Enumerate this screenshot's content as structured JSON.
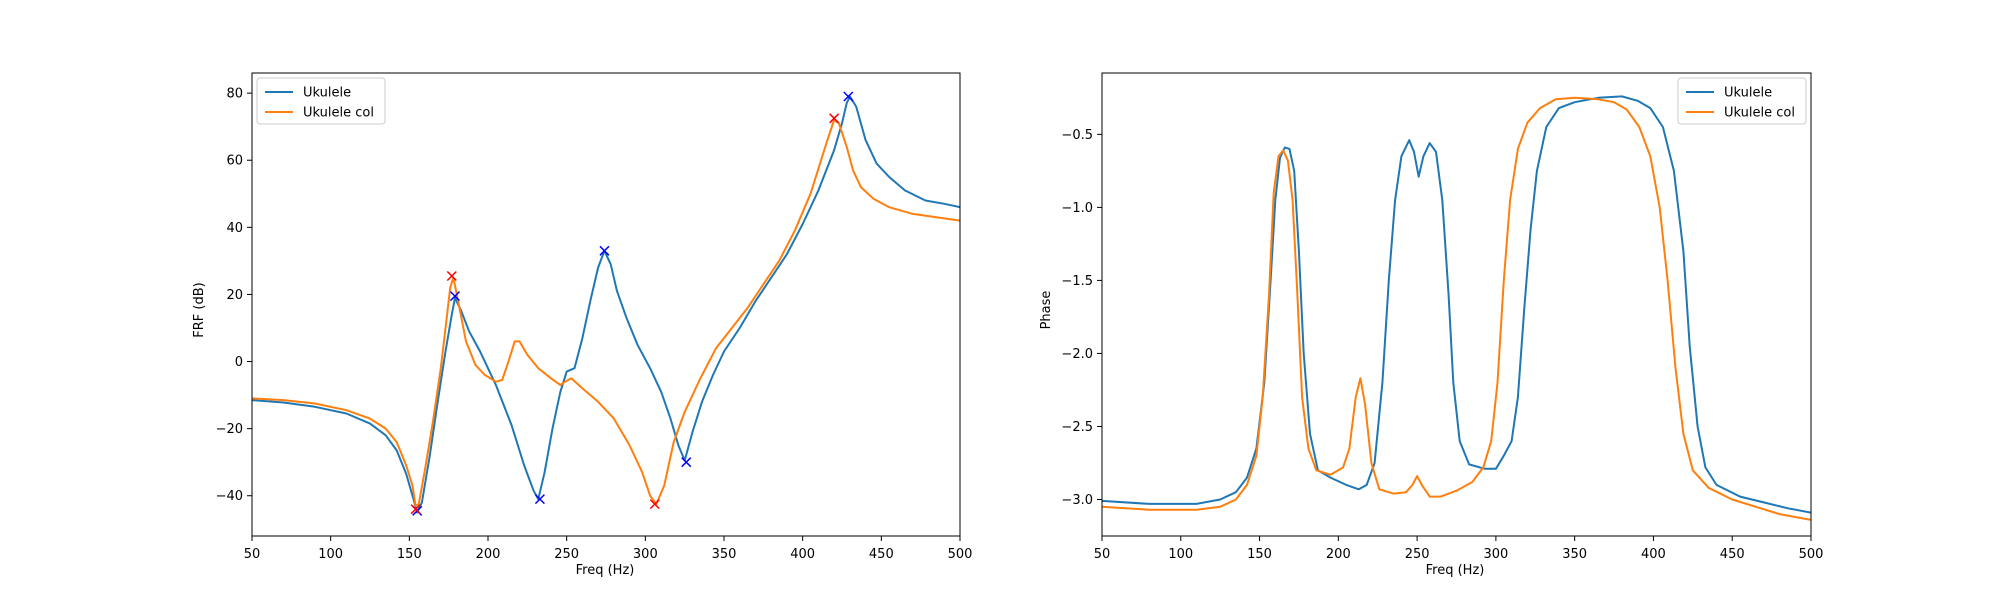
{
  "chart_data": [
    {
      "type": "line",
      "title": "",
      "xlabel": "Freq (Hz)",
      "ylabel": "FRF (dB)",
      "xlim": [
        50,
        500
      ],
      "ylim": [
        -52,
        86
      ],
      "xticks": [
        50,
        100,
        150,
        200,
        250,
        300,
        350,
        400,
        450,
        500
      ],
      "yticks": [
        -40,
        -20,
        0,
        20,
        40,
        60,
        80
      ],
      "grid": false,
      "legend_position": "top-left",
      "series": [
        {
          "name": "Ukulele",
          "color": "#1f77b4",
          "points": [
            [
              50,
              -11.5
            ],
            [
              70,
              -12.2
            ],
            [
              90,
              -13.5
            ],
            [
              110,
              -15.5
            ],
            [
              125,
              -18.5
            ],
            [
              135,
              -22
            ],
            [
              142,
              -26.5
            ],
            [
              148,
              -33.5
            ],
            [
              152,
              -40
            ],
            [
              155,
              -45
            ],
            [
              158,
              -42
            ],
            [
              163,
              -28
            ],
            [
              168,
              -12
            ],
            [
              173,
              3
            ],
            [
              177,
              14
            ],
            [
              179,
              19
            ],
            [
              183,
              15
            ],
            [
              188,
              9
            ],
            [
              195,
              3
            ],
            [
              205,
              -7
            ],
            [
              215,
              -19
            ],
            [
              223,
              -31
            ],
            [
              229,
              -38.5
            ],
            [
              232,
              -41
            ],
            [
              236,
              -33
            ],
            [
              241,
              -20
            ],
            [
              246,
              -9
            ],
            [
              250,
              -3
            ],
            [
              255,
              -2
            ],
            [
              260,
              7
            ],
            [
              265,
              18
            ],
            [
              270,
              28
            ],
            [
              274,
              33
            ],
            [
              278,
              29
            ],
            [
              282,
              21
            ],
            [
              288,
              13
            ],
            [
              295,
              5
            ],
            [
              303,
              -2
            ],
            [
              310,
              -9
            ],
            [
              316,
              -17
            ],
            [
              321,
              -25
            ],
            [
              325,
              -29.5
            ],
            [
              330,
              -21
            ],
            [
              336,
              -12
            ],
            [
              343,
              -4
            ],
            [
              350,
              3
            ],
            [
              360,
              10
            ],
            [
              370,
              18
            ],
            [
              380,
              25
            ],
            [
              390,
              32
            ],
            [
              400,
              41
            ],
            [
              410,
              51
            ],
            [
              420,
              63
            ],
            [
              425,
              71
            ],
            [
              428,
              77
            ],
            [
              430,
              79
            ],
            [
              434,
              76
            ],
            [
              440,
              66
            ],
            [
              447,
              59
            ],
            [
              455,
              55
            ],
            [
              465,
              51
            ],
            [
              478,
              48
            ],
            [
              490,
              47
            ],
            [
              500,
              46
            ]
          ]
        },
        {
          "name": "Ukulele col",
          "color": "#ff7f0e",
          "points": [
            [
              50,
              -11
            ],
            [
              70,
              -11.5
            ],
            [
              90,
              -12.5
            ],
            [
              110,
              -14.5
            ],
            [
              125,
              -17
            ],
            [
              135,
              -20
            ],
            [
              142,
              -24
            ],
            [
              148,
              -31
            ],
            [
              152,
              -37
            ],
            [
              154,
              -43
            ],
            [
              156,
              -42.5
            ],
            [
              160,
              -32
            ],
            [
              165,
              -18
            ],
            [
              170,
              -2
            ],
            [
              174,
              14
            ],
            [
              176,
              22
            ],
            [
              178,
              25
            ],
            [
              181,
              18
            ],
            [
              186,
              6
            ],
            [
              192,
              -1
            ],
            [
              198,
              -4
            ],
            [
              205,
              -6
            ],
            [
              209,
              -5.5
            ],
            [
              213,
              0
            ],
            [
              217,
              6
            ],
            [
              220,
              6
            ],
            [
              225,
              2
            ],
            [
              232,
              -2
            ],
            [
              240,
              -5
            ],
            [
              246,
              -7
            ],
            [
              249,
              -6
            ],
            [
              253,
              -5
            ],
            [
              260,
              -8
            ],
            [
              270,
              -12
            ],
            [
              280,
              -17
            ],
            [
              290,
              -25
            ],
            [
              298,
              -33
            ],
            [
              303,
              -40
            ],
            [
              307,
              -42.5
            ],
            [
              312,
              -37
            ],
            [
              318,
              -24
            ],
            [
              325,
              -15
            ],
            [
              335,
              -5
            ],
            [
              345,
              4
            ],
            [
              355,
              10
            ],
            [
              365,
              16
            ],
            [
              375,
              23
            ],
            [
              385,
              30
            ],
            [
              395,
              39
            ],
            [
              405,
              50
            ],
            [
              415,
              65
            ],
            [
              420,
              72
            ],
            [
              423,
              71
            ],
            [
              428,
              64
            ],
            [
              432,
              57
            ],
            [
              437,
              52
            ],
            [
              445,
              48.5
            ],
            [
              455,
              46
            ],
            [
              470,
              44
            ],
            [
              485,
              43
            ],
            [
              500,
              42
            ]
          ]
        }
      ],
      "markers": [
        {
          "x": 155,
          "y": -44.5,
          "color": "#0000ff",
          "symbol": "x"
        },
        {
          "x": 179,
          "y": 19.5,
          "color": "#0000ff",
          "symbol": "x"
        },
        {
          "x": 233,
          "y": -41,
          "color": "#0000ff",
          "symbol": "x"
        },
        {
          "x": 274,
          "y": 33,
          "color": "#0000ff",
          "symbol": "x"
        },
        {
          "x": 326,
          "y": -30,
          "color": "#0000ff",
          "symbol": "x"
        },
        {
          "x": 429,
          "y": 79,
          "color": "#0000ff",
          "symbol": "x"
        },
        {
          "x": 154,
          "y": -44,
          "color": "#ff0000",
          "symbol": "x"
        },
        {
          "x": 177,
          "y": 25.5,
          "color": "#ff0000",
          "symbol": "x"
        },
        {
          "x": 306,
          "y": -42.5,
          "color": "#ff0000",
          "symbol": "x"
        },
        {
          "x": 420,
          "y": 72.5,
          "color": "#ff0000",
          "symbol": "x"
        }
      ]
    },
    {
      "type": "line",
      "title": "",
      "xlabel": "Freq (Hz)",
      "ylabel": "Phase",
      "xlim": [
        50,
        500
      ],
      "ylim": [
        -3.25,
        -0.08
      ],
      "xticks": [
        50,
        100,
        150,
        200,
        250,
        300,
        350,
        400,
        450,
        500
      ],
      "yticks": [
        -3.0,
        -2.5,
        -2.0,
        -1.5,
        -1.0,
        -0.5
      ],
      "ytick_labels": [
        "−3.0",
        "−2.5",
        "−2.0",
        "−1.5",
        "−1.0",
        "−0.5"
      ],
      "grid": false,
      "legend_position": "top-right",
      "series": [
        {
          "name": "Ukulele",
          "color": "#1f77b4",
          "points": [
            [
              50,
              -3.01
            ],
            [
              80,
              -3.03
            ],
            [
              110,
              -3.03
            ],
            [
              125,
              -3.0
            ],
            [
              135,
              -2.95
            ],
            [
              142,
              -2.85
            ],
            [
              148,
              -2.65
            ],
            [
              153,
              -2.2
            ],
            [
              157,
              -1.5
            ],
            [
              160,
              -0.95
            ],
            [
              163,
              -0.66
            ],
            [
              166,
              -0.59
            ],
            [
              169,
              -0.6
            ],
            [
              172,
              -0.75
            ],
            [
              175,
              -1.3
            ],
            [
              178,
              -2.0
            ],
            [
              182,
              -2.55
            ],
            [
              187,
              -2.8
            ],
            [
              195,
              -2.85
            ],
            [
              205,
              -2.9
            ],
            [
              213,
              -2.93
            ],
            [
              218,
              -2.9
            ],
            [
              223,
              -2.75
            ],
            [
              228,
              -2.2
            ],
            [
              232,
              -1.5
            ],
            [
              236,
              -0.95
            ],
            [
              240,
              -0.65
            ],
            [
              245,
              -0.54
            ],
            [
              248,
              -0.62
            ],
            [
              251,
              -0.79
            ],
            [
              254,
              -0.65
            ],
            [
              258,
              -0.56
            ],
            [
              262,
              -0.62
            ],
            [
              266,
              -0.95
            ],
            [
              270,
              -1.6
            ],
            [
              273,
              -2.2
            ],
            [
              277,
              -2.6
            ],
            [
              283,
              -2.76
            ],
            [
              293,
              -2.79
            ],
            [
              300,
              -2.79
            ],
            [
              305,
              -2.7
            ],
            [
              310,
              -2.6
            ],
            [
              314,
              -2.3
            ],
            [
              318,
              -1.7
            ],
            [
              322,
              -1.15
            ],
            [
              326,
              -0.75
            ],
            [
              332,
              -0.45
            ],
            [
              340,
              -0.32
            ],
            [
              350,
              -0.28
            ],
            [
              365,
              -0.25
            ],
            [
              380,
              -0.24
            ],
            [
              390,
              -0.27
            ],
            [
              398,
              -0.32
            ],
            [
              406,
              -0.45
            ],
            [
              413,
              -0.75
            ],
            [
              419,
              -1.3
            ],
            [
              423,
              -1.95
            ],
            [
              428,
              -2.5
            ],
            [
              433,
              -2.78
            ],
            [
              440,
              -2.9
            ],
            [
              455,
              -2.98
            ],
            [
              470,
              -3.02
            ],
            [
              485,
              -3.06
            ],
            [
              500,
              -3.09
            ]
          ]
        },
        {
          "name": "Ukulele col",
          "color": "#ff7f0e",
          "points": [
            [
              50,
              -3.05
            ],
            [
              80,
              -3.07
            ],
            [
              110,
              -3.07
            ],
            [
              125,
              -3.05
            ],
            [
              135,
              -3.0
            ],
            [
              142,
              -2.9
            ],
            [
              148,
              -2.7
            ],
            [
              152,
              -2.3
            ],
            [
              156,
              -1.6
            ],
            [
              159,
              -0.9
            ],
            [
              162,
              -0.65
            ],
            [
              165,
              -0.61
            ],
            [
              168,
              -0.68
            ],
            [
              171,
              -0.95
            ],
            [
              174,
              -1.6
            ],
            [
              177,
              -2.3
            ],
            [
              181,
              -2.65
            ],
            [
              186,
              -2.8
            ],
            [
              195,
              -2.83
            ],
            [
              203,
              -2.78
            ],
            [
              207,
              -2.65
            ],
            [
              211,
              -2.3
            ],
            [
              214,
              -2.17
            ],
            [
              217,
              -2.35
            ],
            [
              221,
              -2.75
            ],
            [
              226,
              -2.93
            ],
            [
              235,
              -2.96
            ],
            [
              243,
              -2.95
            ],
            [
              247,
              -2.9
            ],
            [
              250,
              -2.84
            ],
            [
              253,
              -2.9
            ],
            [
              258,
              -2.98
            ],
            [
              265,
              -2.98
            ],
            [
              275,
              -2.94
            ],
            [
              285,
              -2.88
            ],
            [
              292,
              -2.78
            ],
            [
              297,
              -2.6
            ],
            [
              301,
              -2.2
            ],
            [
              305,
              -1.5
            ],
            [
              309,
              -0.95
            ],
            [
              314,
              -0.6
            ],
            [
              320,
              -0.42
            ],
            [
              328,
              -0.32
            ],
            [
              338,
              -0.26
            ],
            [
              350,
              -0.25
            ],
            [
              365,
              -0.26
            ],
            [
              375,
              -0.28
            ],
            [
              383,
              -0.33
            ],
            [
              391,
              -0.45
            ],
            [
              398,
              -0.65
            ],
            [
              404,
              -1.0
            ],
            [
              409,
              -1.5
            ],
            [
              414,
              -2.1
            ],
            [
              419,
              -2.55
            ],
            [
              425,
              -2.8
            ],
            [
              435,
              -2.92
            ],
            [
              450,
              -3.0
            ],
            [
              465,
              -3.05
            ],
            [
              480,
              -3.1
            ],
            [
              500,
              -3.14
            ]
          ]
        }
      ]
    }
  ]
}
